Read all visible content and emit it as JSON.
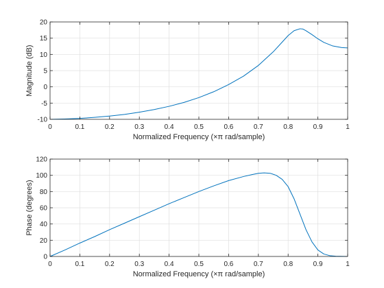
{
  "chart_data": [
    {
      "type": "line",
      "xlabel": "Normalized Frequency  (×π rad/sample)",
      "ylabel": "Magnitude (dB)",
      "xlim": [
        0,
        1
      ],
      "ylim": [
        -10,
        20
      ],
      "xticks": [
        0,
        0.1,
        0.2,
        0.3,
        0.4,
        0.5,
        0.6,
        0.7,
        0.8,
        0.9,
        1
      ],
      "xtick_labels": [
        "0",
        "0.1",
        "0.2",
        "0.3",
        "0.4",
        "0.5",
        "0.6",
        "0.7",
        "0.8",
        "0.9",
        "1"
      ],
      "yticks": [
        -10,
        -5,
        0,
        5,
        10,
        15,
        20
      ],
      "ytick_labels": [
        "-10",
        "-5",
        "0",
        "5",
        "10",
        "15",
        "20"
      ],
      "grid": true,
      "color": "#0072bd",
      "series": [
        {
          "x": [
            0,
            0.05,
            0.1,
            0.15,
            0.2,
            0.25,
            0.3,
            0.35,
            0.4,
            0.45,
            0.5,
            0.55,
            0.6,
            0.65,
            0.7,
            0.75,
            0.78,
            0.8,
            0.82,
            0.84,
            0.85,
            0.86,
            0.88,
            0.9,
            0.92,
            0.95,
            0.98,
            1
          ],
          "y": [
            -10,
            -9.9,
            -9.7,
            -9.4,
            -9,
            -8.5,
            -7.8,
            -7,
            -6,
            -4.8,
            -3.3,
            -1.5,
            0.7,
            3.3,
            6.6,
            10.8,
            13.8,
            15.8,
            17.3,
            17.9,
            17.8,
            17.3,
            16.1,
            14.8,
            13.7,
            12.6,
            12.1,
            12
          ]
        }
      ]
    },
    {
      "type": "line",
      "xlabel": "Normalized Frequency  (×π rad/sample)",
      "ylabel": "Phase (degrees)",
      "xlim": [
        0,
        1
      ],
      "ylim": [
        0,
        120
      ],
      "xticks": [
        0,
        0.1,
        0.2,
        0.3,
        0.4,
        0.5,
        0.6,
        0.7,
        0.8,
        0.9,
        1
      ],
      "xtick_labels": [
        "0",
        "0.1",
        "0.2",
        "0.3",
        "0.4",
        "0.5",
        "0.6",
        "0.7",
        "0.8",
        "0.9",
        "1"
      ],
      "yticks": [
        0,
        20,
        40,
        60,
        80,
        100,
        120
      ],
      "ytick_labels": [
        "0",
        "20",
        "40",
        "60",
        "80",
        "100",
        "120"
      ],
      "grid": true,
      "color": "#0072bd",
      "series": [
        {
          "x": [
            0,
            0.05,
            0.1,
            0.15,
            0.2,
            0.25,
            0.3,
            0.35,
            0.4,
            0.45,
            0.5,
            0.55,
            0.6,
            0.65,
            0.68,
            0.7,
            0.72,
            0.74,
            0.76,
            0.78,
            0.8,
            0.82,
            0.84,
            0.86,
            0.88,
            0.9,
            0.92,
            0.94,
            0.96,
            1
          ],
          "y": [
            0,
            8,
            16.5,
            24.5,
            33,
            41,
            49,
            57,
            65,
            72.5,
            80,
            87,
            93.5,
            98.5,
            101,
            102.5,
            103,
            102.5,
            100,
            95,
            86,
            71,
            52,
            33,
            18,
            8,
            3,
            1,
            0.3,
            0
          ]
        }
      ]
    }
  ]
}
